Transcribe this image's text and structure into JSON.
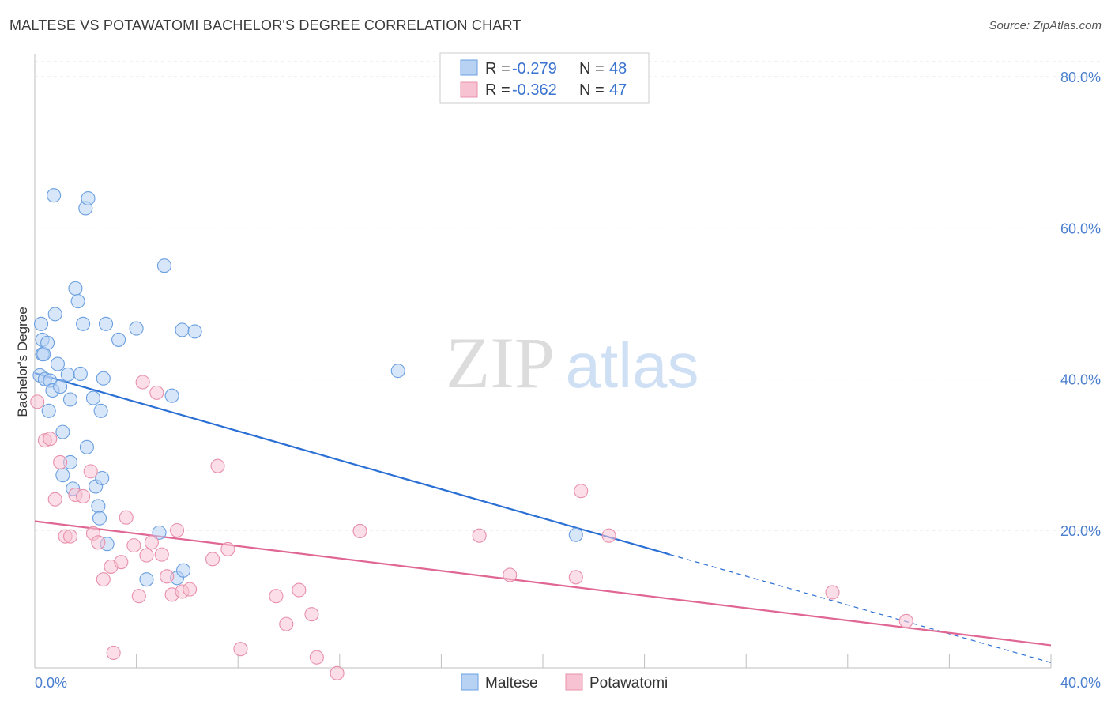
{
  "title": "MALTESE VS POTAWATOMI BACHELOR'S DEGREE CORRELATION CHART",
  "source": "Source: ZipAtlas.com",
  "watermark": {
    "zip": "ZIP",
    "atlas": "atlas"
  },
  "legend": {
    "r_label": "R =",
    "n_label": "N =",
    "rows": [
      {
        "r": "-0.279",
        "n": "48"
      },
      {
        "r": "-0.362",
        "n": "47"
      }
    ]
  },
  "chart_data": {
    "type": "scatter",
    "title": "MALTESE VS POTAWATOMI BACHELOR'S DEGREE CORRELATION CHART",
    "xlabel": "",
    "ylabel": "Bachelor's Degree",
    "xlim": [
      0,
      40
    ],
    "ylim": [
      0,
      82
    ],
    "x_tick_labels": [
      "0.0%",
      "40.0%"
    ],
    "y_ticks": [
      20,
      40,
      60,
      80
    ],
    "y_tick_labels": [
      "20.0%",
      "40.0%",
      "60.0%",
      "80.0%"
    ],
    "grid": true,
    "series": [
      {
        "name": "Maltese",
        "color": "#6a9fe0",
        "fill": "#b8d2f4",
        "points": [
          [
            0.2,
            40.5
          ],
          [
            0.25,
            47.3
          ],
          [
            0.3,
            43.3
          ],
          [
            0.3,
            45.2
          ],
          [
            0.35,
            43.3
          ],
          [
            0.4,
            40.0
          ],
          [
            0.5,
            44.8
          ],
          [
            0.55,
            35.8
          ],
          [
            0.6,
            39.8
          ],
          [
            0.7,
            38.5
          ],
          [
            0.75,
            64.3
          ],
          [
            0.8,
            48.6
          ],
          [
            0.9,
            42.0
          ],
          [
            1.0,
            39.0
          ],
          [
            1.1,
            33.0
          ],
          [
            1.1,
            27.3
          ],
          [
            1.3,
            40.6
          ],
          [
            1.4,
            29.0
          ],
          [
            1.4,
            37.3
          ],
          [
            1.5,
            25.5
          ],
          [
            1.6,
            52.0
          ],
          [
            1.7,
            50.3
          ],
          [
            1.8,
            40.7
          ],
          [
            1.9,
            47.3
          ],
          [
            2.0,
            62.6
          ],
          [
            2.05,
            31.0
          ],
          [
            2.1,
            63.9
          ],
          [
            2.3,
            37.5
          ],
          [
            2.4,
            25.8
          ],
          [
            2.5,
            23.2
          ],
          [
            2.55,
            21.6
          ],
          [
            2.6,
            35.8
          ],
          [
            2.65,
            26.9
          ],
          [
            2.7,
            40.1
          ],
          [
            2.8,
            47.3
          ],
          [
            2.85,
            18.2
          ],
          [
            3.3,
            45.2
          ],
          [
            4.0,
            46.7
          ],
          [
            4.4,
            13.5
          ],
          [
            4.9,
            19.7
          ],
          [
            5.1,
            55.0
          ],
          [
            5.4,
            37.8
          ],
          [
            5.6,
            13.7
          ],
          [
            5.8,
            46.5
          ],
          [
            5.85,
            14.7
          ],
          [
            6.3,
            46.3
          ],
          [
            14.3,
            41.1
          ],
          [
            21.3,
            19.4
          ]
        ]
      },
      {
        "name": "Potawatomi",
        "color": "#e890ab",
        "fill": "#f7c3d3",
        "points": [
          [
            0.1,
            37.0
          ],
          [
            0.4,
            31.9
          ],
          [
            0.6,
            32.1
          ],
          [
            0.8,
            24.1
          ],
          [
            1.0,
            29.0
          ],
          [
            1.2,
            19.2
          ],
          [
            1.4,
            19.2
          ],
          [
            1.6,
            24.7
          ],
          [
            1.9,
            24.5
          ],
          [
            2.2,
            27.8
          ],
          [
            2.3,
            19.6
          ],
          [
            2.5,
            18.4
          ],
          [
            2.7,
            13.5
          ],
          [
            3.0,
            15.2
          ],
          [
            3.1,
            3.8
          ],
          [
            3.4,
            15.8
          ],
          [
            3.6,
            21.7
          ],
          [
            3.9,
            18.0
          ],
          [
            4.1,
            11.3
          ],
          [
            4.25,
            39.6
          ],
          [
            4.4,
            16.7
          ],
          [
            4.6,
            18.4
          ],
          [
            4.8,
            38.2
          ],
          [
            5.0,
            16.8
          ],
          [
            5.2,
            13.9
          ],
          [
            5.4,
            11.5
          ],
          [
            5.6,
            20.0
          ],
          [
            5.8,
            11.9
          ],
          [
            6.1,
            12.2
          ],
          [
            7.0,
            16.2
          ],
          [
            7.2,
            28.5
          ],
          [
            7.6,
            17.5
          ],
          [
            8.1,
            4.3
          ],
          [
            9.5,
            11.3
          ],
          [
            9.9,
            7.6
          ],
          [
            10.4,
            12.1
          ],
          [
            10.9,
            8.9
          ],
          [
            11.1,
            3.2
          ],
          [
            11.9,
            1.1
          ],
          [
            12.8,
            19.9
          ],
          [
            17.5,
            19.3
          ],
          [
            18.7,
            14.1
          ],
          [
            21.3,
            13.8
          ],
          [
            21.5,
            25.2
          ],
          [
            22.6,
            19.3
          ],
          [
            31.4,
            11.8
          ],
          [
            34.3,
            8.0
          ]
        ]
      }
    ],
    "trendlines": [
      {
        "series": "Maltese",
        "x0": 0,
        "y0": 40.8,
        "x1": 25,
        "y1": 16.8,
        "dash_to_x": 40,
        "dash_to_y": 2.5
      },
      {
        "series": "Potawatomi",
        "x0": 0,
        "y0": 21.2,
        "x1": 40,
        "y1": 4.8
      }
    ]
  },
  "bottom_legend": [
    "Maltese",
    "Potawatomi"
  ]
}
